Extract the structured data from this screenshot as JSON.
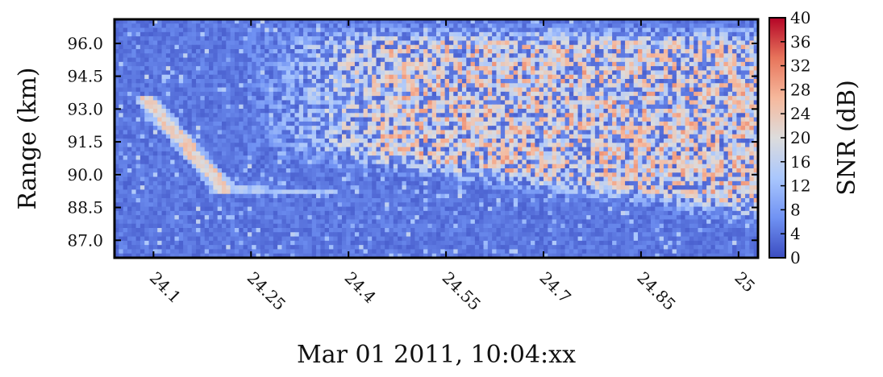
{
  "chart_data": {
    "type": "heatmap",
    "title": "",
    "xlabel": "Mar 01 2011, 10:04:xx",
    "ylabel": "Range (km)",
    "colorbar_label": "SNR (dB)",
    "xlim": [
      24.04,
      25.03
    ],
    "ylim": [
      86.2,
      97.1
    ],
    "x_ticks": [
      24.1,
      24.25,
      24.4,
      24.55,
      24.7,
      24.85,
      25.0
    ],
    "x_tick_labels": [
      "24.1",
      "24.25",
      "24.4",
      "24.55",
      "24.7",
      "24.85",
      "25"
    ],
    "y_ticks": [
      87.0,
      88.5,
      90.0,
      91.5,
      93.0,
      94.5,
      96.0
    ],
    "y_tick_labels": [
      "87.0",
      "88.5",
      "90.0",
      "91.5",
      "93.0",
      "94.5",
      "96.0"
    ],
    "clim": [
      0,
      40
    ],
    "colorbar_ticks": [
      "0",
      "4",
      "8",
      "12",
      "16",
      "20",
      "24",
      "28",
      "32",
      "36",
      "40"
    ],
    "colormap": "coolwarm",
    "colormap_stops": [
      "#3b4cc0",
      "#7092f3",
      "#aac7fd",
      "#dddcdc",
      "#f6b89c",
      "#e7745b",
      "#b40426"
    ],
    "background_snr_db": 4,
    "features": [
      {
        "kind": "meteor-head-echo-streak",
        "start": [
          24.09,
          93.4
        ],
        "end": [
          24.21,
          89.3
        ],
        "snr_db": 22
      },
      {
        "kind": "trail-band",
        "start": [
          24.21,
          89.3
        ],
        "end": [
          24.37,
          89.2
        ],
        "snr_db": 14
      },
      {
        "kind": "diffuse-echo-region",
        "x_range": [
          24.3,
          25.03
        ],
        "range_lower_km": [
          91.2,
          88.3
        ],
        "range_upper_km": 96.5,
        "peak_snr_db": 30
      }
    ]
  }
}
